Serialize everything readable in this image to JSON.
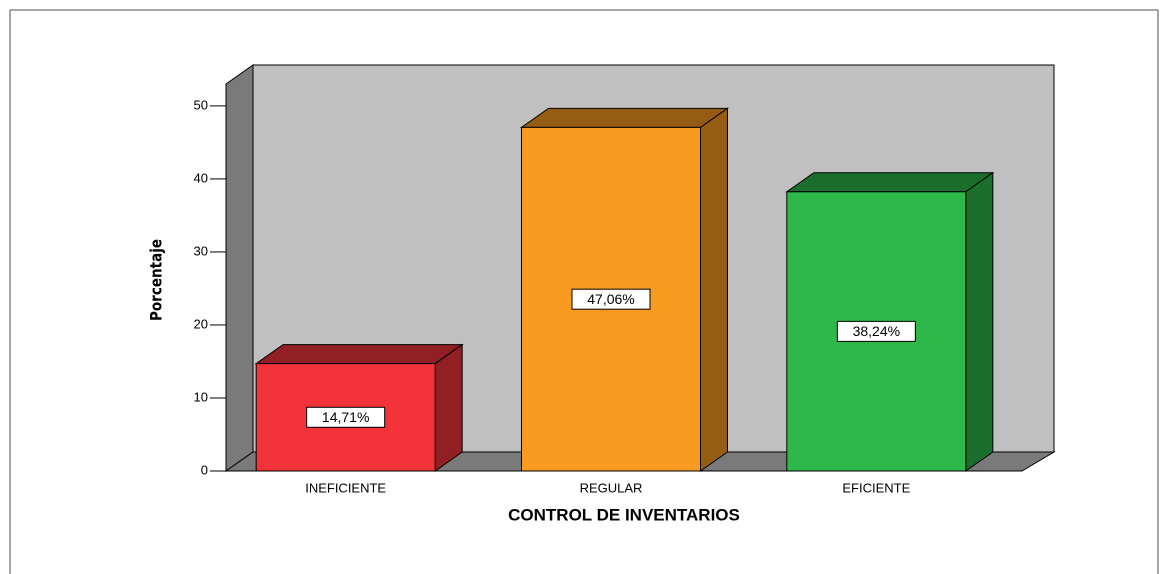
{
  "chart_data": {
    "type": "bar3d",
    "xlabel": "CONTROL DE INVENTARIOS",
    "ylabel": "Porcentaje",
    "categories": [
      "INEFICIENTE",
      "REGULAR",
      "EFICIENTE"
    ],
    "values": [
      14.71,
      47.06,
      38.24
    ],
    "value_labels": [
      "14,71%",
      "47,06%",
      "38,24%"
    ],
    "colors": [
      "#f2333a",
      "#f99b20",
      "#2eb84a"
    ],
    "ylim": [
      0,
      53
    ],
    "yticks": [
      0,
      10,
      20,
      30,
      40,
      50
    ],
    "grid": false
  }
}
